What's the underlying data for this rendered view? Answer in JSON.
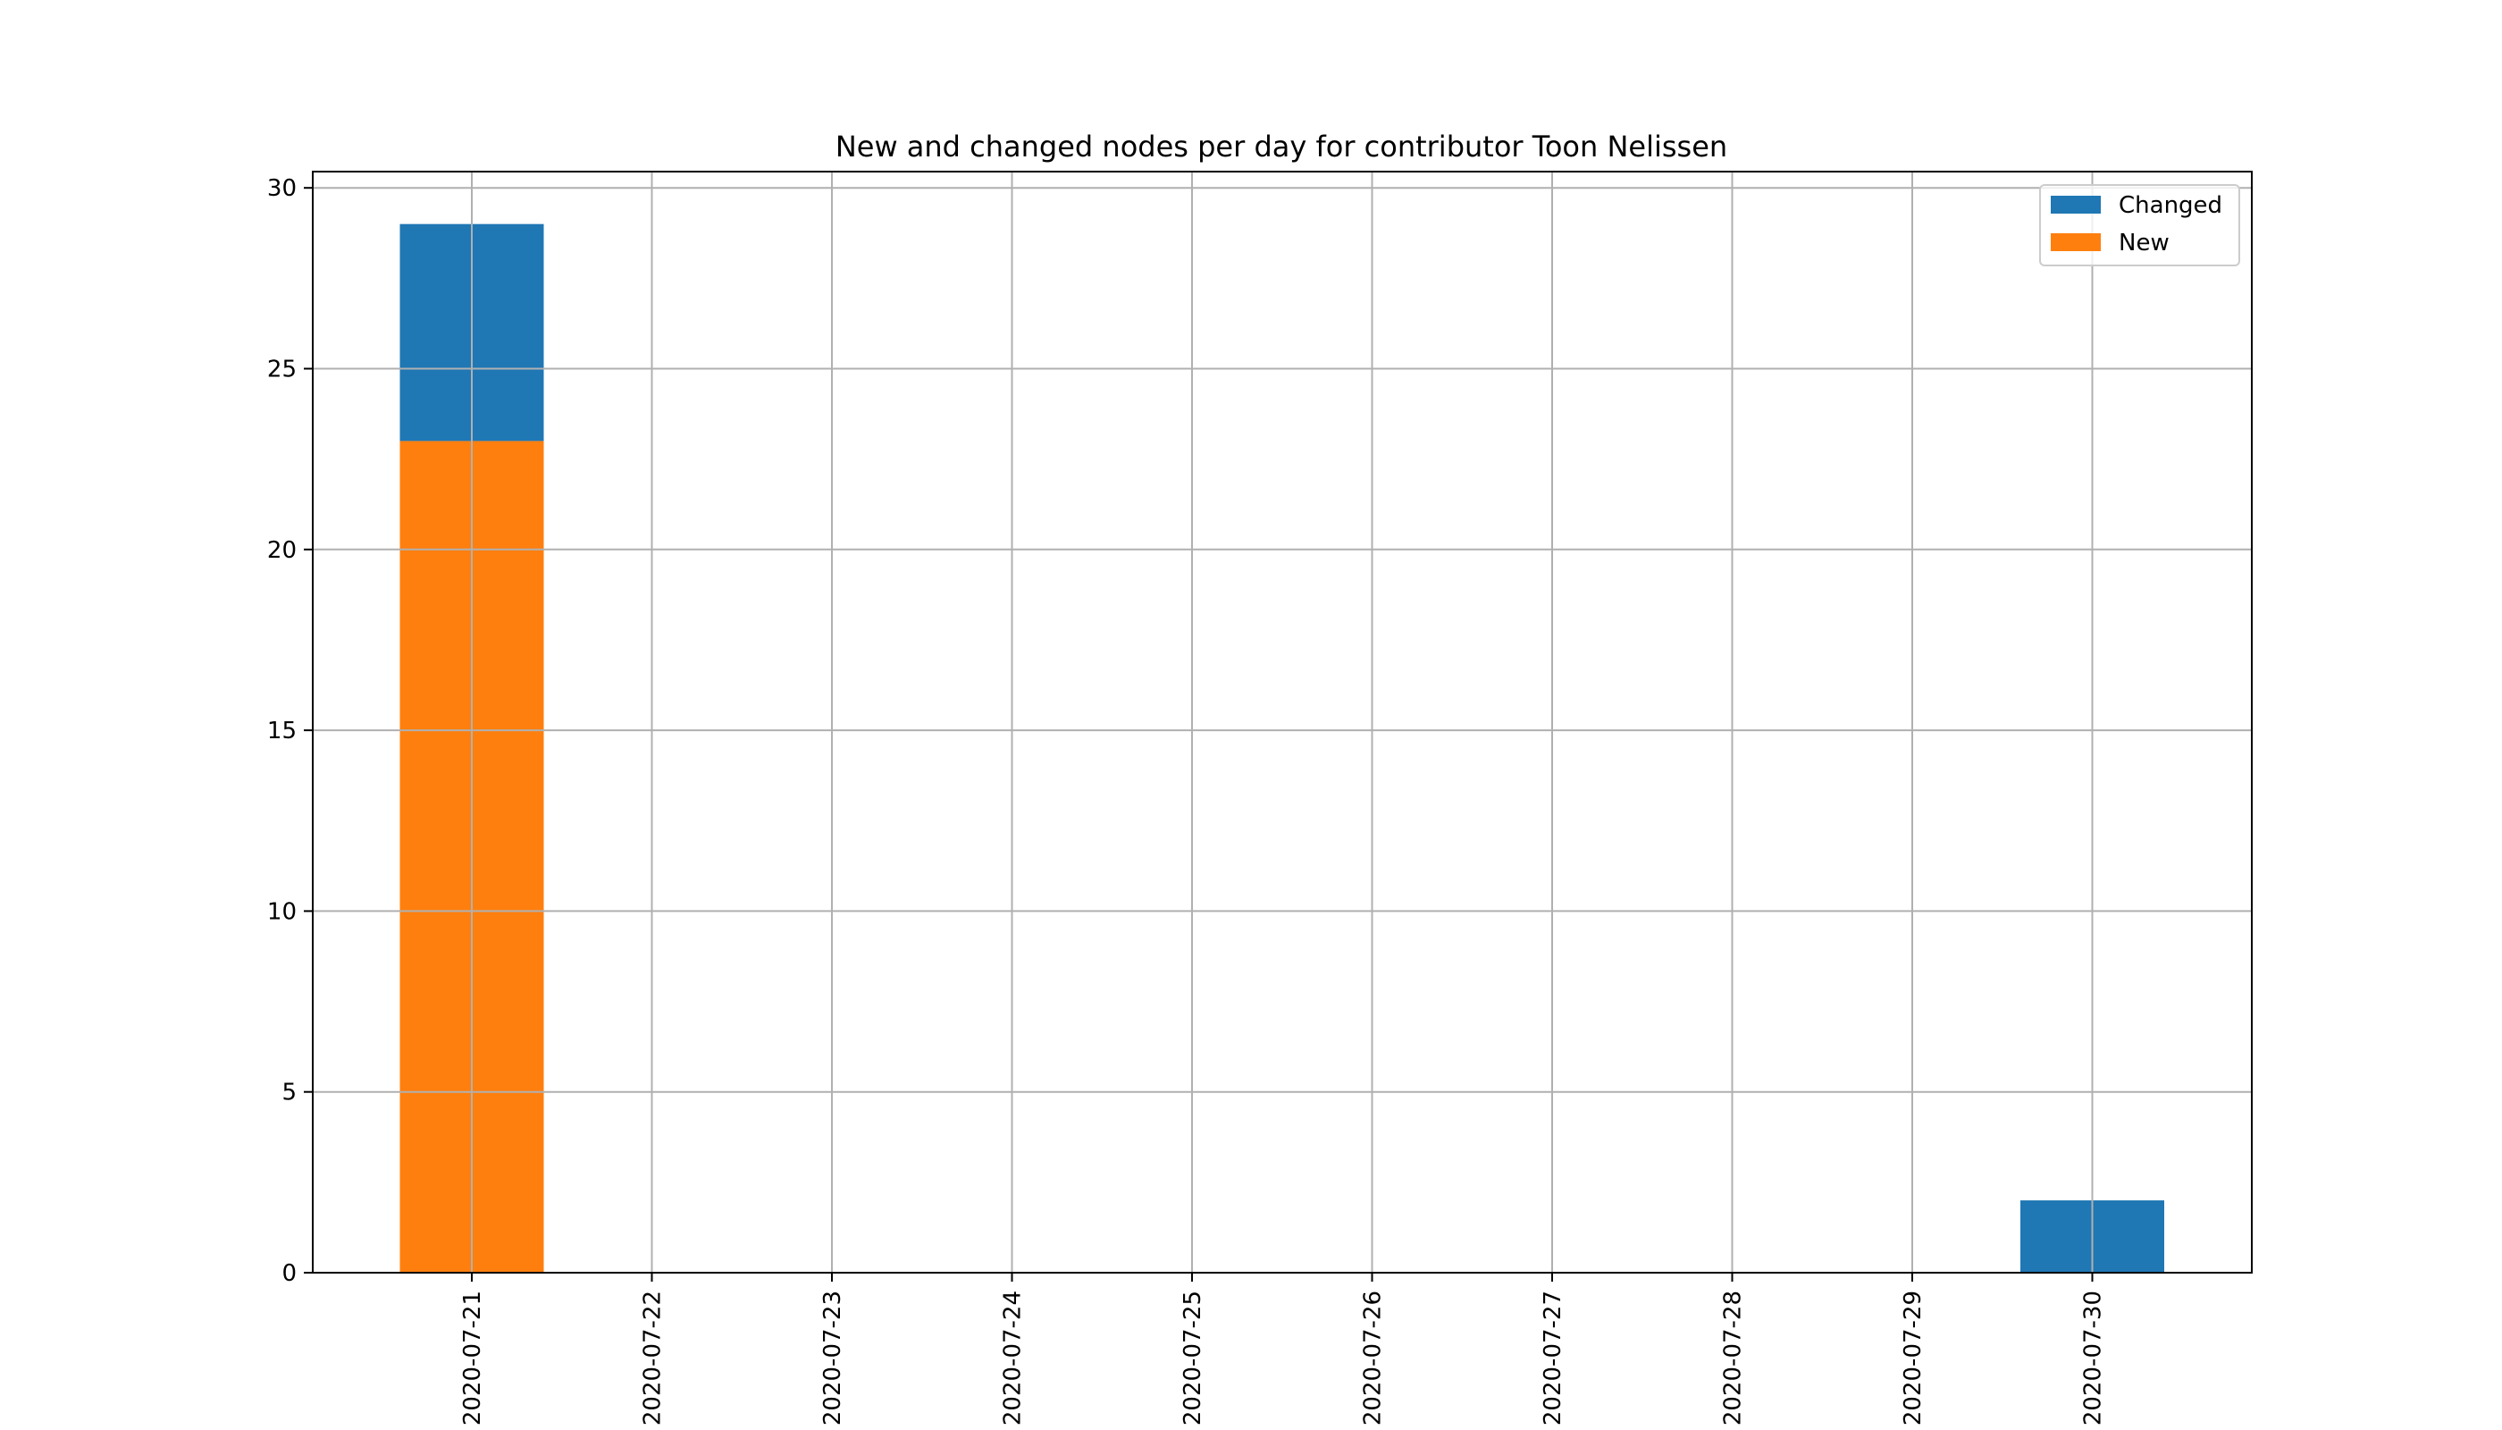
{
  "chart_data": {
    "type": "bar",
    "stacked": true,
    "title": "New and changed nodes per day for contributor Toon Nelissen",
    "xlabel": "",
    "ylabel": "",
    "categories": [
      "2020-07-21",
      "2020-07-22",
      "2020-07-23",
      "2020-07-24",
      "2020-07-25",
      "2020-07-26",
      "2020-07-27",
      "2020-07-28",
      "2020-07-29",
      "2020-07-30"
    ],
    "series": [
      {
        "name": "New",
        "color": "#ff7f0e",
        "values": [
          23,
          0,
          0,
          0,
          0,
          0,
          0,
          0,
          0,
          0
        ]
      },
      {
        "name": "Changed",
        "color": "#1f77b4",
        "values": [
          6,
          0,
          0,
          0,
          0,
          0,
          0,
          0,
          0,
          2
        ]
      }
    ],
    "legend_order": [
      "Changed",
      "New"
    ],
    "yticks": [
      0,
      5,
      10,
      15,
      20,
      25,
      30
    ],
    "ylim": [
      0,
      30.45
    ],
    "grid": true,
    "legend_position": "top-right"
  }
}
